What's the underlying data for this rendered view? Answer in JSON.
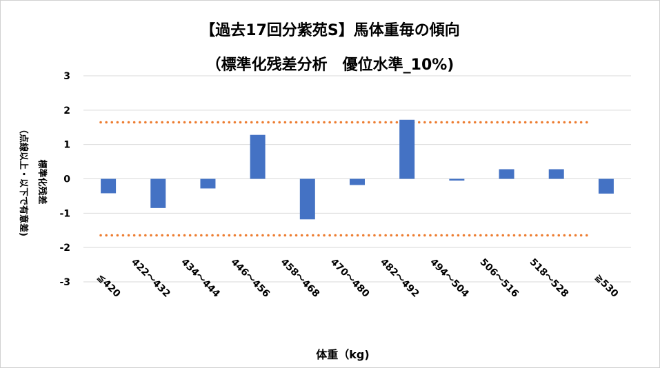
{
  "chart_data": {
    "type": "bar",
    "title": "【過去17回分紫苑S】馬体重毎の傾向",
    "subtitle": "（標準化残差分析　優位水準_10%)",
    "xlabel": "体重（kg)",
    "ylabel_primary": "標準化残差",
    "ylabel_secondary": "（点線以上・以下で有意差)",
    "categories": [
      "≦420",
      "422～432",
      "434～444",
      "446～456",
      "458～468",
      "470～480",
      "482～492",
      "494～504",
      "506～516",
      "518～528",
      "≧530"
    ],
    "values": [
      -0.42,
      -0.85,
      -0.28,
      1.28,
      -1.18,
      -0.18,
      1.72,
      -0.05,
      0.28,
      0.28,
      -0.43
    ],
    "ylim": [
      -3,
      3
    ],
    "yticks": [
      3,
      2,
      1,
      0,
      -1,
      -2,
      -3
    ],
    "reference_lines": [
      1.645,
      -1.645
    ],
    "grid": true,
    "legend": "none",
    "colors": {
      "bar": "#4472C4",
      "reference_line": "#ED7D31",
      "grid": "#D9D9D9"
    }
  }
}
